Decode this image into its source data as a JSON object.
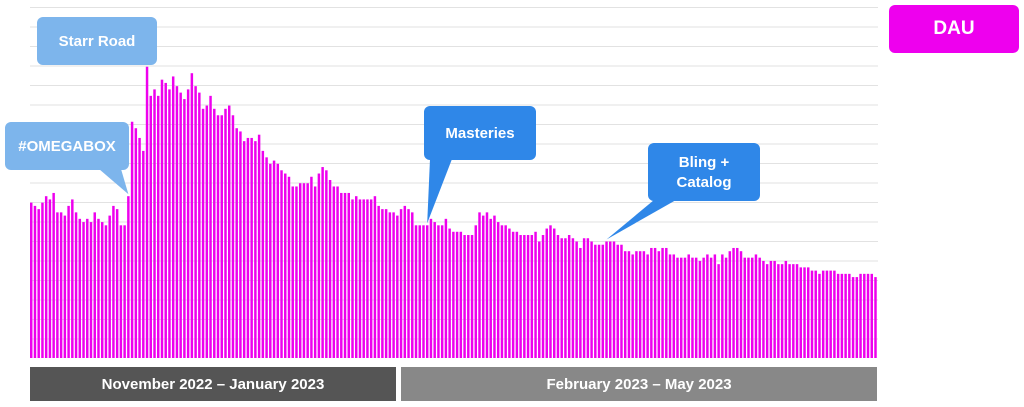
{
  "chart_data": {
    "type": "bar",
    "title": "",
    "xlabel": "",
    "ylabel": "",
    "legend": {
      "label": "DAU",
      "color": "#ee00ee",
      "position": "top-right"
    },
    "grid": true,
    "y_unit": "relative DAU (axis unlabeled)",
    "ylim": [
      0,
      110
    ],
    "series": [
      {
        "name": "DAU",
        "color": "#ee00ee",
        "values": [
          48,
          47,
          46,
          48,
          50,
          49,
          51,
          45,
          45,
          44,
          47,
          49,
          45,
          43,
          42,
          43,
          42,
          45,
          43,
          42,
          41,
          44,
          47,
          46,
          41,
          41,
          50,
          73,
          71,
          68,
          64,
          90,
          81,
          83,
          81,
          86,
          85,
          83,
          87,
          84,
          82,
          80,
          83,
          88,
          84,
          82,
          77,
          78,
          81,
          77,
          75,
          75,
          77,
          78,
          75,
          71,
          70,
          67,
          68,
          68,
          67,
          69,
          64,
          62,
          60,
          61,
          60,
          58,
          57,
          56,
          53,
          53,
          54,
          54,
          54,
          56,
          53,
          57,
          59,
          58,
          55,
          53,
          53,
          51,
          51,
          51,
          49,
          50,
          49,
          49,
          49,
          49,
          50,
          47,
          46,
          46,
          45,
          45,
          44,
          46,
          47,
          46,
          45,
          41,
          41,
          41,
          41,
          43,
          42,
          41,
          41,
          43,
          40,
          39,
          39,
          39,
          38,
          38,
          38,
          41,
          45,
          44,
          45,
          43,
          44,
          42,
          41,
          41,
          40,
          39,
          39,
          38,
          38,
          38,
          38,
          39,
          36,
          38,
          40,
          41,
          40,
          38,
          37,
          37,
          38,
          37,
          36,
          34,
          37,
          37,
          36,
          35,
          35,
          35,
          36,
          36,
          36,
          35,
          35,
          33,
          33,
          32,
          33,
          33,
          33,
          32,
          34,
          34,
          33,
          34,
          34,
          32,
          32,
          31,
          31,
          31,
          32,
          31,
          31,
          30,
          31,
          32,
          31,
          32,
          29,
          32,
          31,
          33,
          34,
          34,
          33,
          31,
          31,
          31,
          32,
          31,
          30,
          29,
          30,
          30,
          29,
          29,
          30,
          29,
          29,
          29,
          28,
          28,
          28,
          27,
          27,
          26,
          27,
          27,
          27,
          27,
          26,
          26,
          26,
          26,
          25,
          25,
          26,
          26,
          26,
          26,
          25
        ]
      }
    ],
    "annotations": [
      {
        "label": "#OMEGABOX",
        "bar_index": 26,
        "style": "light"
      },
      {
        "label": "Starr Road",
        "bar_index": 31,
        "style": "light"
      },
      {
        "label": "Masteries",
        "bar_index": 106,
        "style": "dark"
      },
      {
        "label": "Bling +\nCatalog",
        "bar_index": 154,
        "style": "dark"
      }
    ],
    "periods": [
      {
        "label": "November 2022 – January 2023"
      },
      {
        "label": "February 2023 – May 2023"
      }
    ],
    "colors": {
      "bar": "#ee00ee",
      "callout_light": "#7db5ec",
      "callout_dark": "#2f87e8",
      "period_1": "#555555",
      "period_2": "#888888"
    }
  }
}
